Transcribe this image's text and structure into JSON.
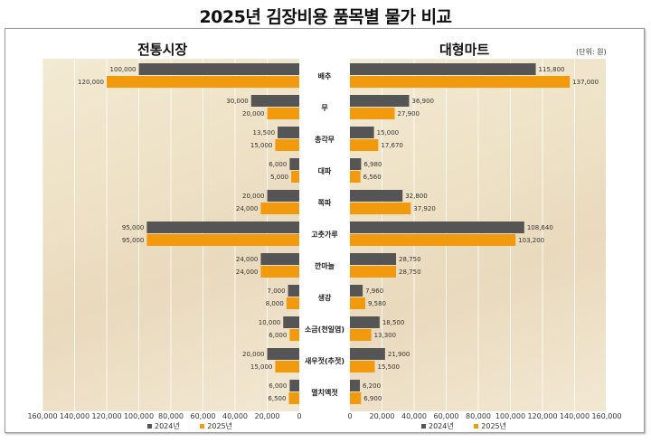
{
  "title": "2025년 김장비용 품목별 물가 비교",
  "unit_label": "(단위: 원)",
  "colors": {
    "2024": "#555555",
    "2025": "#f29a0e"
  },
  "chart_data": [
    {
      "type": "bar",
      "orientation": "horizontal-reversed",
      "title": "전통시장",
      "categories": [
        "배추",
        "무",
        "총각무",
        "대파",
        "쪽파",
        "고춧가루",
        "깐마늘",
        "생강",
        "소금(천일염)",
        "새우젓(추젓)",
        "멸치액젓"
      ],
      "series": [
        {
          "name": "2024년",
          "values": [
            100000,
            30000,
            13500,
            6000,
            20000,
            95000,
            24000,
            7000,
            10000,
            20000,
            6000
          ]
        },
        {
          "name": "2025년",
          "values": [
            120000,
            20000,
            15000,
            5000,
            24000,
            95000,
            24000,
            8000,
            6000,
            15000,
            6500
          ]
        }
      ],
      "xlim": [
        0,
        160000
      ],
      "xticks": [
        "160,000",
        "140,000",
        "120,000",
        "100,000",
        "80,000",
        "60,000",
        "40,000",
        "20,000",
        "0"
      ],
      "grid": true,
      "legend": "bottom"
    },
    {
      "type": "bar",
      "orientation": "horizontal",
      "title": "대형마트",
      "categories": [
        "배추",
        "무",
        "총각무",
        "대파",
        "쪽파",
        "고춧가루",
        "깐마늘",
        "생강",
        "소금(천일염)",
        "새우젓(추젓)",
        "멸치액젓"
      ],
      "series": [
        {
          "name": "2024년",
          "values": [
            115800,
            36900,
            15000,
            6980,
            32800,
            108640,
            28750,
            7960,
            18500,
            21900,
            6200
          ]
        },
        {
          "name": "2025년",
          "values": [
            137000,
            27900,
            17670,
            6560,
            37920,
            103200,
            28750,
            9580,
            13300,
            15500,
            6900
          ]
        }
      ],
      "xlim": [
        0,
        160000
      ],
      "xticks": [
        "0",
        "20,000",
        "40,000",
        "60,000",
        "80,000",
        "100,000",
        "120,000",
        "140,000",
        "160,000"
      ],
      "grid": true,
      "legend": "bottom"
    }
  ]
}
